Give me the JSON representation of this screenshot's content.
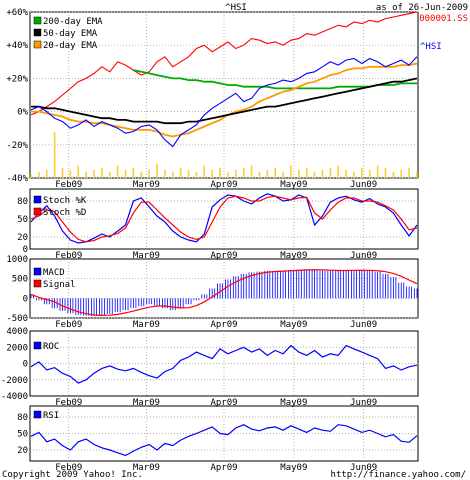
{
  "header": {
    "symbol": "^HSI",
    "as_of": "as of 26-Jun-2009",
    "compare_symbol": "000001.SS",
    "symbol_tag": "^HSI"
  },
  "footer": {
    "copyright": "Copyright 2009 Yahoo! Inc.",
    "url": "http://finance.yahoo.com/"
  },
  "colors": {
    "hsi": "#0000ff",
    "compare": "#ff0000",
    "ema200": "#00aa00",
    "ema50": "#000000",
    "ema20": "#ff9900",
    "volume": "#ffcc33",
    "grid": "#999999",
    "macd_hist": "#0000ff"
  },
  "chart_data": [
    {
      "type": "line",
      "panel": "price",
      "x_ticks": [
        "Feb09",
        "Mar09",
        "Apr09",
        "May09",
        "Jun09"
      ],
      "y_ticks": [
        "+60%",
        "+40%",
        "+20%",
        "0%",
        "-20%",
        "-40%"
      ],
      "ylim": [
        -40,
        60
      ],
      "legend": [
        "200-day EMA",
        "50-day EMA",
        "20-day EMA"
      ],
      "legend_placement": "top-left",
      "series": [
        {
          "name": "^HSI",
          "values": [
            1,
            3,
            0,
            -4,
            -6,
            -10,
            -8,
            -5,
            -9,
            -6,
            -8,
            -10,
            -13,
            -12,
            -9,
            -8,
            -11,
            -17,
            -21,
            -14,
            -11,
            -8,
            -2,
            2,
            5,
            8,
            11,
            6,
            8,
            14,
            16,
            17,
            19,
            18,
            20,
            23,
            24,
            27,
            30,
            28,
            31,
            32,
            29,
            32,
            30,
            27,
            29,
            31,
            28,
            33
          ]
        },
        {
          "name": "000001.SS",
          "values": [
            -2,
            0,
            3,
            6,
            10,
            14,
            18,
            20,
            23,
            27,
            24,
            30,
            28,
            25,
            22,
            24,
            30,
            33,
            27,
            30,
            33,
            38,
            40,
            36,
            39,
            42,
            38,
            40,
            44,
            43,
            41,
            42,
            40,
            43,
            44,
            47,
            46,
            48,
            50,
            52,
            51,
            54,
            53,
            55,
            54,
            56,
            57,
            58,
            59,
            60
          ]
        },
        {
          "name": "200-day EMA",
          "values": [
            null,
            null,
            null,
            null,
            null,
            null,
            null,
            null,
            null,
            null,
            null,
            null,
            null,
            25,
            24,
            23,
            22,
            21,
            20,
            20,
            19,
            19,
            18,
            18,
            17,
            16,
            16,
            15,
            15,
            15,
            15,
            14,
            14,
            14,
            14,
            14,
            14,
            14,
            14,
            15,
            15,
            15,
            15,
            15,
            16,
            16,
            16,
            17,
            17,
            17
          ]
        },
        {
          "name": "50-day EMA",
          "values": [
            3,
            3,
            2,
            2,
            1,
            0,
            -1,
            -2,
            -3,
            -4,
            -4,
            -5,
            -5,
            -6,
            -6,
            -6,
            -6,
            -7,
            -7,
            -7,
            -6,
            -6,
            -5,
            -4,
            -3,
            -2,
            -1,
            0,
            1,
            2,
            3,
            3,
            4,
            5,
            6,
            7,
            8,
            9,
            10,
            11,
            12,
            13,
            14,
            15,
            16,
            17,
            18,
            18,
            19,
            20
          ]
        },
        {
          "name": "20-day EMA",
          "values": [
            0,
            0,
            -1,
            -2,
            -3,
            -5,
            -6,
            -6,
            -7,
            -7,
            -8,
            -9,
            -10,
            -11,
            -11,
            -11,
            -12,
            -14,
            -15,
            -14,
            -13,
            -11,
            -9,
            -7,
            -5,
            -2,
            0,
            1,
            3,
            6,
            8,
            10,
            12,
            13,
            15,
            17,
            18,
            20,
            22,
            23,
            25,
            26,
            26,
            27,
            27,
            27,
            27,
            28,
            28,
            29
          ]
        }
      ],
      "volume": [
        2,
        3,
        4,
        22,
        5,
        4,
        6,
        3,
        4,
        5,
        3,
        6,
        4,
        5,
        3,
        4,
        7,
        4,
        3,
        5,
        4,
        3,
        6,
        4,
        5,
        3,
        4,
        5,
        6,
        3,
        4,
        5,
        3,
        6,
        4,
        5,
        3,
        4,
        5,
        6,
        4,
        3,
        5,
        4,
        6,
        5,
        3,
        4,
        5,
        3
      ]
    },
    {
      "type": "line",
      "panel": "stochastic",
      "y_ticks": [
        "80",
        "50",
        "20",
        "0"
      ],
      "ylim": [
        0,
        100
      ],
      "legend": [
        "Stoch %K",
        "Stoch %D"
      ],
      "series": [
        {
          "name": "Stoch %K",
          "values": [
            45,
            60,
            72,
            55,
            30,
            15,
            10,
            12,
            18,
            25,
            20,
            30,
            40,
            80,
            85,
            70,
            55,
            45,
            30,
            20,
            15,
            12,
            25,
            70,
            82,
            90,
            88,
            80,
            75,
            85,
            92,
            88,
            80,
            82,
            90,
            85,
            40,
            55,
            78,
            85,
            88,
            82,
            78,
            84,
            75,
            70,
            60,
            40,
            22,
            40
          ]
        },
        {
          "name": "Stoch %D",
          "values": [
            50,
            55,
            65,
            62,
            45,
            28,
            16,
            12,
            14,
            20,
            22,
            26,
            35,
            60,
            78,
            78,
            65,
            52,
            40,
            28,
            20,
            16,
            20,
            45,
            70,
            85,
            88,
            85,
            80,
            80,
            86,
            88,
            85,
            82,
            85,
            86,
            60,
            50,
            65,
            78,
            85,
            85,
            80,
            80,
            78,
            72,
            65,
            50,
            32,
            35
          ]
        }
      ]
    },
    {
      "type": "bar",
      "panel": "macd",
      "y_ticks": [
        "1000",
        "500",
        "0",
        "-500"
      ],
      "ylim": [
        -500,
        1000
      ],
      "legend": [
        "MACD",
        "Signal"
      ],
      "histogram": [
        100,
        -50,
        -150,
        -250,
        -320,
        -380,
        -420,
        -440,
        -450,
        -430,
        -400,
        -350,
        -300,
        -250,
        -200,
        -150,
        -180,
        -250,
        -300,
        -250,
        -150,
        -50,
        100,
        250,
        380,
        480,
        560,
        620,
        660,
        680,
        700,
        690,
        700,
        720,
        730,
        740,
        720,
        700,
        700,
        710,
        720,
        720,
        710,
        700,
        680,
        620,
        540,
        400,
        300,
        250
      ]
    },
    {
      "type": "line",
      "panel": "roc",
      "y_ticks": [
        "4000",
        "2000",
        "0",
        "-2000",
        "-4000"
      ],
      "ylim": [
        -4000,
        4000
      ],
      "legend": [
        "ROC"
      ],
      "series": [
        {
          "name": "ROC",
          "values": [
            -400,
            200,
            -800,
            -500,
            -1200,
            -1600,
            -2400,
            -2000,
            -1200,
            -600,
            -300,
            -700,
            -900,
            -600,
            -1100,
            -1500,
            -1800,
            -1000,
            -600,
            400,
            800,
            1400,
            1000,
            600,
            1800,
            1200,
            1600,
            2000,
            1400,
            1800,
            1000,
            1600,
            1200,
            2200,
            1400,
            1000,
            1600,
            800,
            1200,
            1000,
            2200,
            1800,
            1400,
            1000,
            600,
            -600,
            -300,
            -800,
            -400,
            -200
          ]
        }
      ]
    },
    {
      "type": "line",
      "panel": "rsi",
      "y_ticks": [
        "80",
        "50",
        "20"
      ],
      "ylim": [
        0,
        100
      ],
      "legend": [
        "RSI"
      ],
      "series": [
        {
          "name": "RSI",
          "values": [
            45,
            52,
            35,
            40,
            28,
            20,
            35,
            40,
            30,
            24,
            20,
            15,
            10,
            18,
            25,
            30,
            20,
            32,
            28,
            38,
            45,
            50,
            56,
            62,
            50,
            48,
            60,
            66,
            58,
            55,
            60,
            62,
            56,
            64,
            58,
            52,
            60,
            56,
            54,
            66,
            64,
            58,
            52,
            56,
            50,
            44,
            48,
            36,
            34,
            46
          ]
        }
      ]
    }
  ]
}
